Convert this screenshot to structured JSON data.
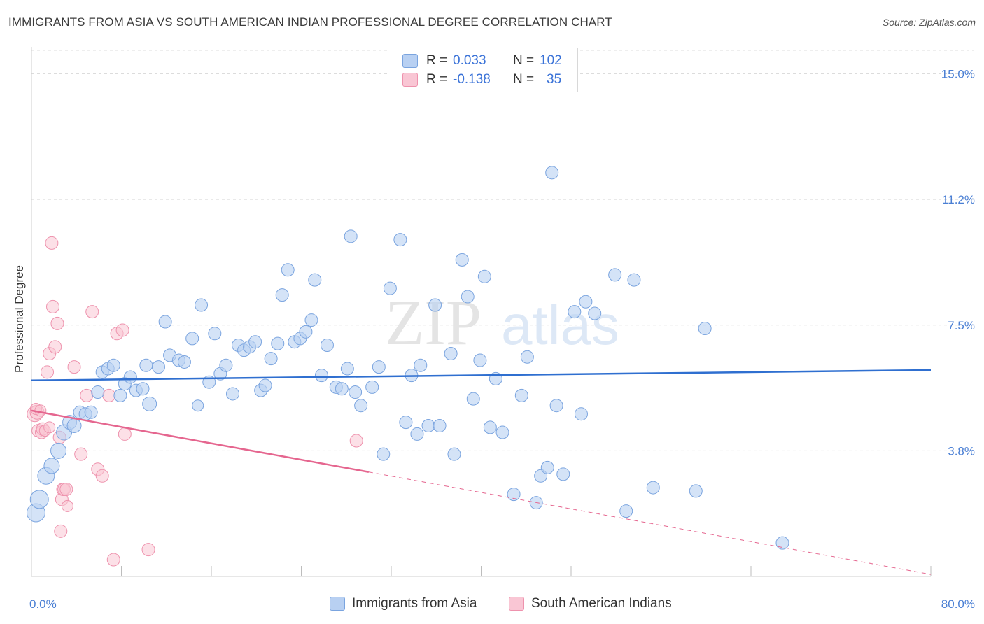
{
  "title": "IMMIGRANTS FROM ASIA VS SOUTH AMERICAN INDIAN PROFESSIONAL DEGREE CORRELATION CHART",
  "source": "Source: ZipAtlas.com",
  "watermark": {
    "zip": "ZIP",
    "atlas": "atlas"
  },
  "colors": {
    "blue_fill": "#b8d0f2",
    "blue_stroke": "#7aa4df",
    "blue_line": "#2f6fd0",
    "pink_fill": "#f9c6d4",
    "pink_stroke": "#ee92ad",
    "pink_line": "#e5668f",
    "tick_text": "#4a7fd4",
    "grid": "#dcdcdc"
  },
  "legend": {
    "rows": [
      {
        "r_label": "R =",
        "r_value": "0.033",
        "n_label": "N =",
        "n_value": "102"
      },
      {
        "r_label": "R =",
        "r_value": "-0.138",
        "n_label": "N =",
        "n_value": "35"
      }
    ]
  },
  "chart_data": {
    "type": "scatter",
    "ylabel": "Professional Degree",
    "x_ticks": [
      "0.0%",
      "80.0%"
    ],
    "y_ticks": [
      "15.0%",
      "11.2%",
      "7.5%",
      "3.8%"
    ],
    "y_tick_values": [
      15.0,
      11.25,
      7.5,
      3.75
    ],
    "xlim": [
      0,
      80
    ],
    "ylim": [
      0,
      15.7
    ],
    "legend_position": "bottom",
    "series": [
      {
        "name": "Immigrants from Asia",
        "color": "blue",
        "trend": {
          "x": [
            0,
            80
          ],
          "y": [
            5.85,
            6.16
          ],
          "dashed_from": null
        },
        "points": [
          [
            0.4,
            1.9,
            13
          ],
          [
            0.7,
            2.3,
            13
          ],
          [
            1.3,
            3.0,
            12
          ],
          [
            1.8,
            3.3,
            11
          ],
          [
            2.4,
            3.75,
            11
          ],
          [
            2.9,
            4.3,
            11
          ],
          [
            3.4,
            4.6,
            10
          ],
          [
            3.8,
            4.5,
            10
          ],
          [
            4.3,
            4.9,
            9
          ],
          [
            4.8,
            4.85,
            9
          ],
          [
            5.3,
            4.9,
            9
          ],
          [
            5.9,
            5.5,
            9
          ],
          [
            6.3,
            6.1,
            9
          ],
          [
            6.8,
            6.2,
            9
          ],
          [
            7.3,
            6.3,
            9
          ],
          [
            7.9,
            5.4,
            9
          ],
          [
            8.3,
            5.75,
            9
          ],
          [
            8.8,
            5.95,
            9
          ],
          [
            9.3,
            5.55,
            9
          ],
          [
            9.9,
            5.6,
            9
          ],
          [
            10.5,
            5.15,
            10
          ],
          [
            10.2,
            6.3,
            9
          ],
          [
            11.3,
            6.25,
            9
          ],
          [
            12.3,
            6.6,
            9
          ],
          [
            11.9,
            7.6,
            9
          ],
          [
            13.1,
            6.45,
            9
          ],
          [
            13.6,
            6.4,
            9
          ],
          [
            14.3,
            7.1,
            9
          ],
          [
            15.1,
            8.1,
            9
          ],
          [
            14.8,
            5.1,
            8
          ],
          [
            15.8,
            5.8,
            9
          ],
          [
            16.3,
            7.25,
            9
          ],
          [
            16.8,
            6.05,
            9
          ],
          [
            17.3,
            6.3,
            9
          ],
          [
            17.9,
            5.45,
            9
          ],
          [
            18.4,
            6.9,
            9
          ],
          [
            18.9,
            6.75,
            9
          ],
          [
            19.4,
            6.85,
            9
          ],
          [
            19.9,
            7.0,
            9
          ],
          [
            20.4,
            5.55,
            9
          ],
          [
            20.8,
            5.7,
            9
          ],
          [
            21.3,
            6.5,
            9
          ],
          [
            21.9,
            6.95,
            9
          ],
          [
            22.3,
            8.4,
            9
          ],
          [
            22.8,
            9.15,
            9
          ],
          [
            23.4,
            7.0,
            9
          ],
          [
            23.9,
            7.1,
            9
          ],
          [
            24.4,
            7.3,
            9
          ],
          [
            24.9,
            7.65,
            9
          ],
          [
            25.2,
            8.85,
            9
          ],
          [
            25.8,
            6.0,
            9
          ],
          [
            26.3,
            6.9,
            9
          ],
          [
            27.1,
            5.65,
            9
          ],
          [
            27.6,
            5.6,
            9
          ],
          [
            28.1,
            6.2,
            9
          ],
          [
            28.4,
            10.15,
            9
          ],
          [
            28.8,
            5.5,
            9
          ],
          [
            29.3,
            5.1,
            9
          ],
          [
            30.3,
            5.65,
            9
          ],
          [
            30.9,
            6.25,
            9
          ],
          [
            31.3,
            3.65,
            9
          ],
          [
            31.9,
            8.6,
            9
          ],
          [
            32.8,
            10.05,
            9
          ],
          [
            33.3,
            4.6,
            9
          ],
          [
            33.8,
            6.0,
            9
          ],
          [
            34.3,
            4.25,
            9
          ],
          [
            34.6,
            6.3,
            9
          ],
          [
            35.3,
            4.5,
            9
          ],
          [
            35.9,
            8.1,
            9
          ],
          [
            36.3,
            4.5,
            9
          ],
          [
            37.3,
            6.65,
            9
          ],
          [
            37.6,
            3.65,
            9
          ],
          [
            38.3,
            9.45,
            9
          ],
          [
            38.8,
            8.35,
            9
          ],
          [
            39.3,
            5.3,
            9
          ],
          [
            39.9,
            6.45,
            9
          ],
          [
            40.3,
            8.95,
            9
          ],
          [
            40.8,
            4.45,
            9
          ],
          [
            41.3,
            5.9,
            9
          ],
          [
            41.9,
            4.3,
            9
          ],
          [
            42.9,
            2.45,
            9
          ],
          [
            43.6,
            5.4,
            9
          ],
          [
            44.1,
            6.55,
            9
          ],
          [
            44.9,
            2.2,
            9
          ],
          [
            45.3,
            3.0,
            9
          ],
          [
            45.9,
            3.25,
            9
          ],
          [
            46.3,
            12.05,
            9
          ],
          [
            46.7,
            5.1,
            9
          ],
          [
            47.3,
            3.05,
            9
          ],
          [
            48.3,
            7.9,
            9
          ],
          [
            48.9,
            4.85,
            9
          ],
          [
            49.3,
            8.2,
            9
          ],
          [
            50.1,
            7.85,
            9
          ],
          [
            51.9,
            9.0,
            9
          ],
          [
            52.9,
            1.95,
            9
          ],
          [
            53.6,
            8.85,
            9
          ],
          [
            55.3,
            2.65,
            9
          ],
          [
            59.1,
            2.55,
            9
          ],
          [
            59.9,
            7.4,
            9
          ],
          [
            66.8,
            1.0,
            9
          ]
        ]
      },
      {
        "name": "South American Indians",
        "color": "pink",
        "trend": {
          "x": [
            0,
            80
          ],
          "y": [
            4.95,
            0.06
          ],
          "dashed_from": 30
        },
        "points": [
          [
            0.3,
            4.85,
            11
          ],
          [
            0.5,
            4.9,
            10
          ],
          [
            0.6,
            4.35,
            9
          ],
          [
            0.9,
            4.3,
            9
          ],
          [
            1.0,
            4.4,
            9
          ],
          [
            1.2,
            4.35,
            8
          ],
          [
            1.4,
            6.1,
            9
          ],
          [
            1.6,
            4.45,
            8
          ],
          [
            1.6,
            6.65,
            9
          ],
          [
            1.8,
            9.95,
            9
          ],
          [
            1.9,
            8.05,
            9
          ],
          [
            2.1,
            6.85,
            9
          ],
          [
            2.3,
            7.55,
            9
          ],
          [
            2.5,
            4.15,
            9
          ],
          [
            2.6,
            1.35,
            9
          ],
          [
            2.7,
            2.3,
            9
          ],
          [
            2.8,
            2.6,
            9
          ],
          [
            2.9,
            2.6,
            9
          ],
          [
            3.1,
            2.6,
            9
          ],
          [
            3.2,
            2.1,
            8
          ],
          [
            3.8,
            6.25,
            9
          ],
          [
            4.4,
            3.65,
            9
          ],
          [
            4.9,
            5.4,
            9
          ],
          [
            5.4,
            7.9,
            9
          ],
          [
            5.9,
            3.2,
            9
          ],
          [
            6.3,
            3.0,
            9
          ],
          [
            6.9,
            5.4,
            9
          ],
          [
            7.3,
            0.5,
            9
          ],
          [
            7.6,
            7.25,
            9
          ],
          [
            8.1,
            7.35,
            9
          ],
          [
            8.3,
            4.25,
            9
          ],
          [
            10.4,
            0.8,
            9
          ],
          [
            28.9,
            4.05,
            9
          ],
          [
            0.4,
            5.0,
            8
          ],
          [
            0.8,
            4.95,
            8
          ]
        ]
      }
    ]
  }
}
